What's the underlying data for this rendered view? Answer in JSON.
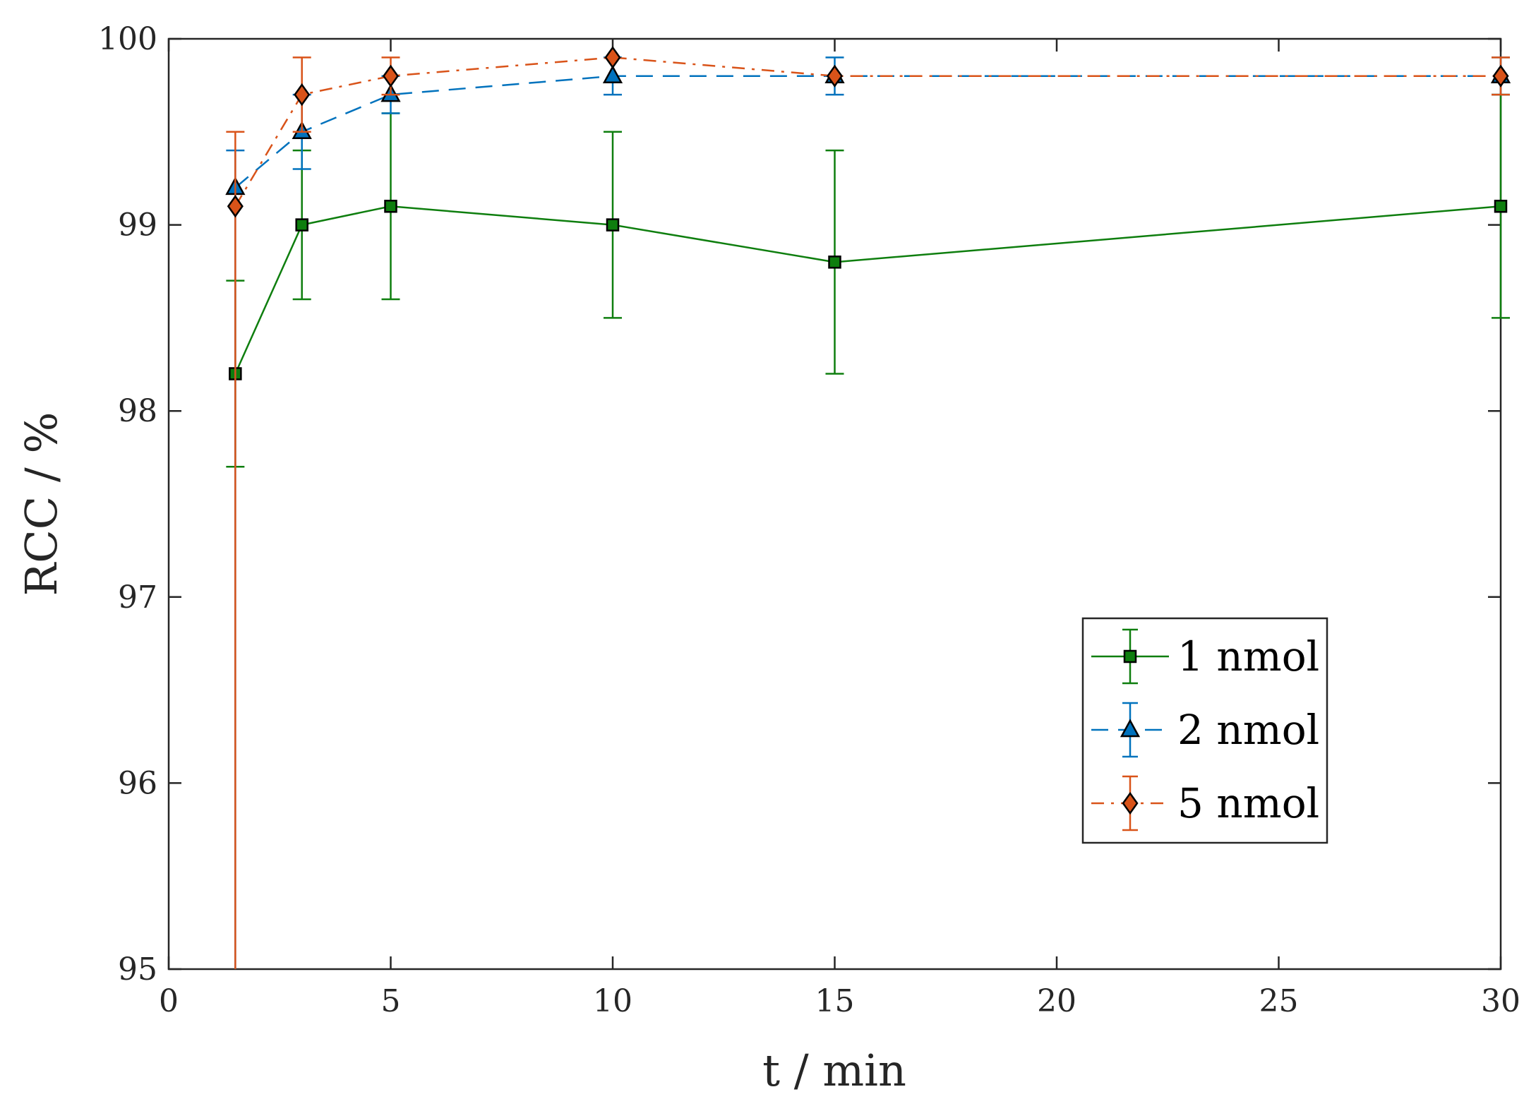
{
  "chart_data": {
    "type": "line",
    "title": "",
    "xlabel": "t / min",
    "ylabel": "RCC / %",
    "xlim": [
      0,
      30
    ],
    "ylim": [
      95,
      100
    ],
    "xticks": [
      0,
      5,
      10,
      15,
      20,
      25,
      30
    ],
    "yticks": [
      95,
      96,
      97,
      98,
      99,
      100
    ],
    "grid": false,
    "legend_position": "right",
    "x": [
      1.5,
      3,
      5,
      10,
      15,
      30
    ],
    "series": [
      {
        "name": "1 nmol",
        "color": "#0e7e0e",
        "marker": "square",
        "line_style": "solid",
        "values": [
          98.2,
          99.0,
          99.1,
          99.0,
          98.8,
          99.1
        ],
        "error": [
          0.5,
          0.4,
          0.5,
          0.5,
          0.6,
          0.6
        ]
      },
      {
        "name": "2 nmol",
        "color": "#0072bd",
        "marker": "triangle",
        "line_style": "dashed",
        "values": [
          99.2,
          99.5,
          99.7,
          99.8,
          99.8,
          99.8
        ],
        "error": [
          0.2,
          0.2,
          0.1,
          0.1,
          0.1,
          0.1
        ],
        "error_lower_override": [
          5.0,
          null,
          null,
          null,
          null,
          null
        ]
      },
      {
        "name": "5 nmol",
        "color": "#d95319",
        "marker": "diamond",
        "line_style": "dashdot",
        "values": [
          99.1,
          99.7,
          99.8,
          99.9,
          99.8,
          99.8
        ],
        "error": [
          0.4,
          0.2,
          0.1,
          0.0,
          0.0,
          0.1
        ],
        "error_lower_override": [
          5.0,
          null,
          null,
          null,
          null,
          null
        ]
      }
    ]
  }
}
